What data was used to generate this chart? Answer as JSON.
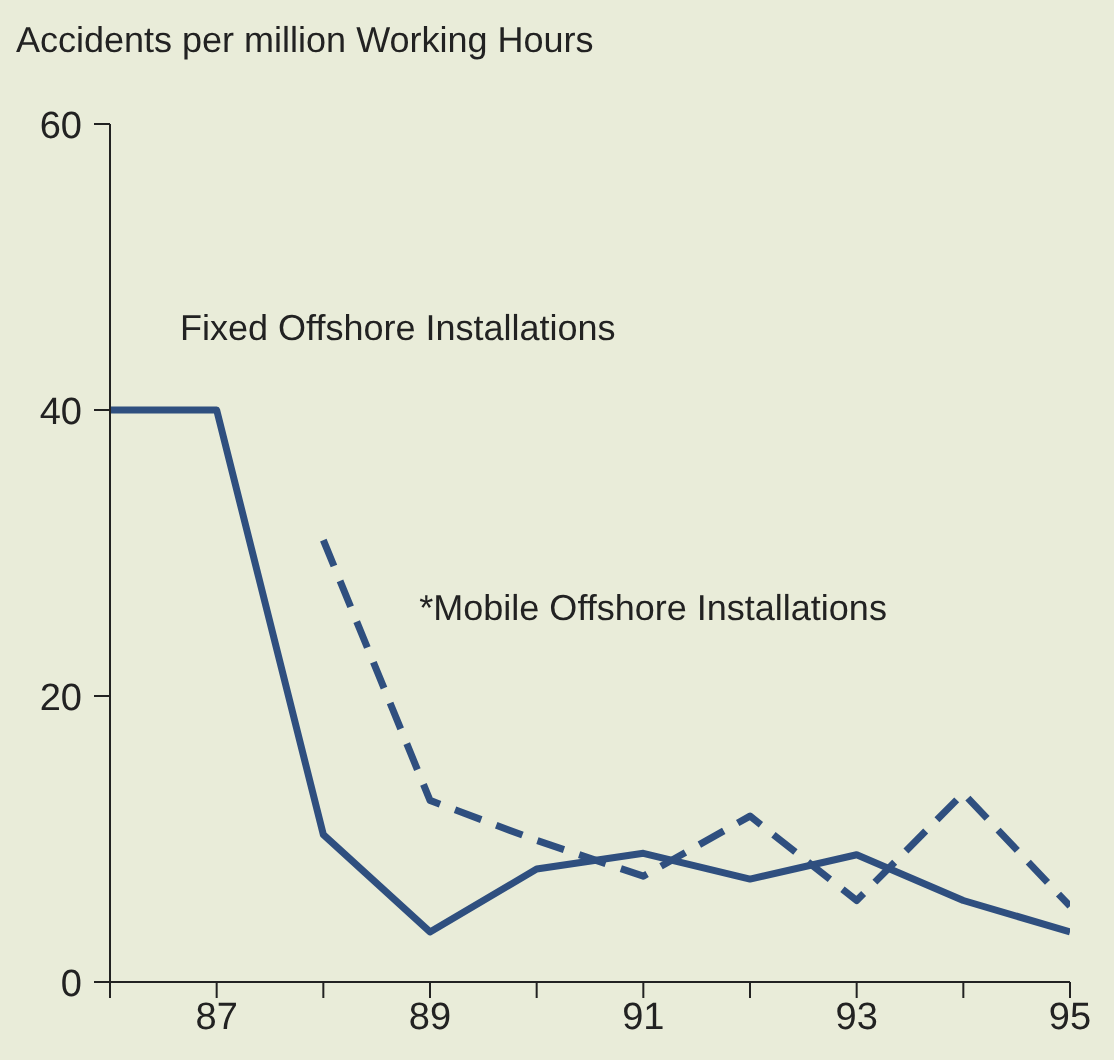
{
  "chart_data": {
    "type": "line",
    "ylabel": "Accidents per million Working Hours",
    "x": [
      86,
      87,
      88,
      89,
      90,
      91,
      92,
      93,
      94,
      95
    ],
    "xlim": [
      86,
      95
    ],
    "xticks": [
      {
        "value": 86,
        "label": null
      },
      87,
      {
        "value": 88,
        "label": null
      },
      89,
      {
        "value": 90,
        "label": null
      },
      91,
      {
        "value": 92,
        "label": null
      },
      93,
      {
        "value": 94,
        "label": null
      },
      95
    ],
    "ylim": [
      0,
      60
    ],
    "yticks": [
      0,
      20,
      40,
      60
    ],
    "grid": false,
    "legend": false,
    "marker": "none",
    "series": [
      {
        "name": "Fixed Offshore Installations",
        "color": "#2f4f7f",
        "line_style": "solid",
        "values": [
          40,
          40,
          10.3,
          3.5,
          7.9,
          9.0,
          7.2,
          8.9,
          5.7,
          3.5
        ]
      },
      {
        "name": "*Mobile Offshore Installations",
        "color": "#2f4f7f",
        "line_style": "dashed",
        "values": [
          null,
          null,
          30.9,
          12.7,
          9.9,
          7.4,
          11.6,
          5.7,
          13.2,
          5.3
        ]
      }
    ]
  }
}
